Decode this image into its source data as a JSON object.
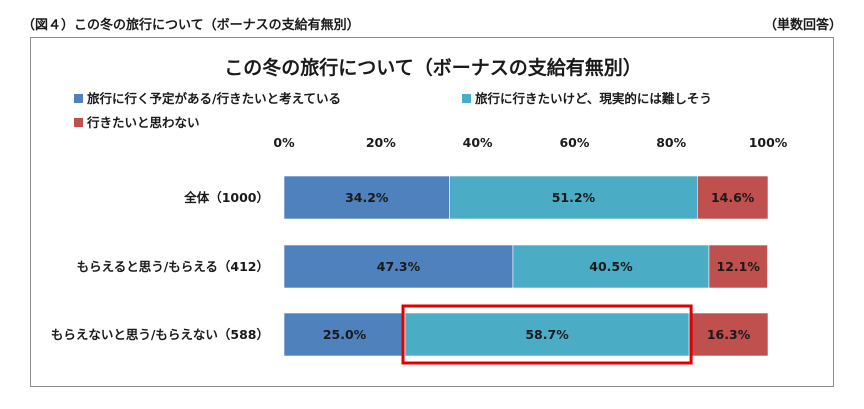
{
  "header": {
    "figure_label": "（図４）この冬の旅行について（ボーナスの支給有無別）",
    "note": "（単数回答）"
  },
  "colors": {
    "plan": "#4f81bd",
    "want": "#4bacc6",
    "no": "#c0504d",
    "highlight": "#e00000"
  },
  "chart_data": {
    "type": "bar",
    "orientation": "horizontal",
    "stacked": true,
    "title": "この冬の旅行について（ボーナスの支給有無別）",
    "xlabel": "",
    "ylabel": "",
    "xlim": [
      0,
      100
    ],
    "ticks": [
      0,
      20,
      40,
      60,
      80,
      100
    ],
    "tick_labels": [
      "0%",
      "20%",
      "40%",
      "60%",
      "80%",
      "100%"
    ],
    "categories": [
      "全体（1000）",
      "もらえると思う/もらえる（412）",
      "もらえないと思う/もらえない（588）"
    ],
    "series": [
      {
        "name": "旅行に行く予定がある/行きたいと考えている",
        "values": [
          34.2,
          47.3,
          25.0
        ],
        "labels": [
          "34.2%",
          "47.3%",
          "25.0%"
        ]
      },
      {
        "name": "旅行に行きたいけど、現実的には難しそう",
        "values": [
          51.2,
          40.5,
          58.7
        ],
        "labels": [
          "51.2%",
          "40.5%",
          "58.7%"
        ]
      },
      {
        "name": "行きたいと思わない",
        "values": [
          14.6,
          12.1,
          16.3
        ],
        "labels": [
          "14.6%",
          "12.1%",
          "16.3%"
        ]
      }
    ],
    "legend": "top",
    "grid": false,
    "highlight": {
      "category_index": 2,
      "series_index": 1
    }
  }
}
